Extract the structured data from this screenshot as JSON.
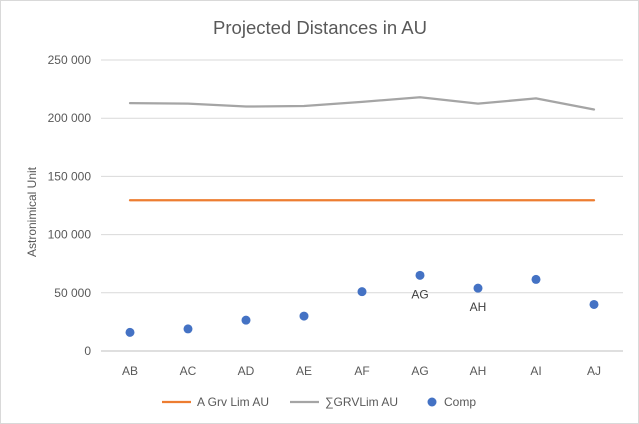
{
  "chart_data": {
    "type": "line",
    "title": "Projected Distances in AU",
    "xlabel": "",
    "ylabel": "Astronimical Unit",
    "categories": [
      "AB",
      "AC",
      "AD",
      "AE",
      "AF",
      "AG",
      "AH",
      "AI",
      "AJ"
    ],
    "ylim": [
      0,
      250000
    ],
    "yticks": [
      0,
      50000,
      100000,
      150000,
      200000,
      250000
    ],
    "ytick_labels": [
      "0",
      "50 000",
      "100 000",
      "150 000",
      "200 000",
      "250 000"
    ],
    "grid": true,
    "legend_position": "bottom",
    "series": [
      {
        "name": "A Grv Lim AU",
        "type": "line",
        "color": "#ED7D31",
        "values": [
          129500,
          129500,
          129500,
          129500,
          129500,
          129500,
          129500,
          129500,
          129500
        ]
      },
      {
        "name": "∑GRVLim AU",
        "type": "line",
        "color": "#A5A5A5",
        "values": [
          213000,
          212500,
          210000,
          210500,
          214000,
          218000,
          212500,
          217000,
          207500
        ]
      },
      {
        "name": "Comp",
        "type": "scatter",
        "color": "#4472C4",
        "values": [
          16000,
          19000,
          26500,
          30000,
          51000,
          65000,
          54000,
          61500,
          40000
        ]
      }
    ],
    "annotations": [
      {
        "category": "AG",
        "series": "Comp",
        "text": "AG"
      },
      {
        "category": "AH",
        "series": "Comp",
        "text": "AH"
      }
    ]
  }
}
